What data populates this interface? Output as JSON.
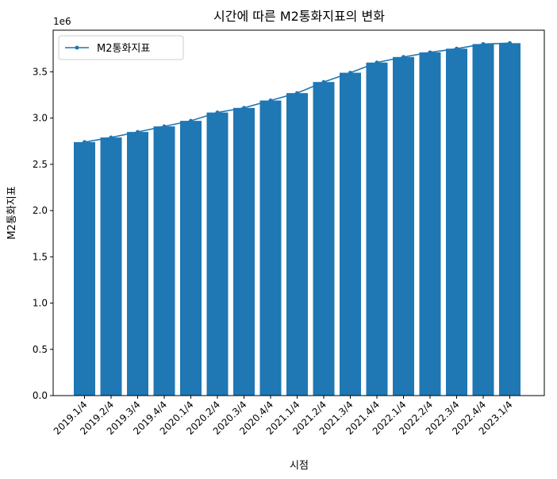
{
  "chart_data": {
    "type": "bar",
    "title": "시간에 따른 M2통화지표의 변화",
    "xlabel": "시점",
    "ylabel": "M2통화지표",
    "y_multiplier_label": "1e6",
    "categories": [
      "2019.1/4",
      "2019.2/4",
      "2019.3/4",
      "2019.4/4",
      "2020.1/4",
      "2020.2/4",
      "2020.3/4",
      "2020.4/4",
      "2021.1/4",
      "2021.2/4",
      "2021.3/4",
      "2021.4/4",
      "2022.1/4",
      "2022.2/4",
      "2022.3/4",
      "2022.4/4",
      "2023.1/4"
    ],
    "series": [
      {
        "name": "M2통화지표",
        "kind": "bar",
        "values": [
          2.74,
          2.79,
          2.85,
          2.91,
          2.97,
          3.06,
          3.11,
          3.19,
          3.27,
          3.39,
          3.49,
          3.6,
          3.66,
          3.71,
          3.75,
          3.8,
          3.81
        ]
      },
      {
        "name": "M2통화지표",
        "kind": "line",
        "values": [
          2.74,
          2.79,
          2.85,
          2.91,
          2.97,
          3.06,
          3.11,
          3.19,
          3.27,
          3.39,
          3.49,
          3.6,
          3.66,
          3.71,
          3.75,
          3.8,
          3.81
        ]
      }
    ],
    "ylim": [
      0,
      3.95
    ],
    "yticks": [
      "0.0",
      "0.5",
      "1.0",
      "1.5",
      "2.0",
      "2.5",
      "3.0",
      "3.5"
    ],
    "legend": {
      "position": "top-left",
      "entries": [
        "M2통화지표"
      ]
    },
    "grid": false,
    "colors": {
      "bar": "#1f77b4",
      "line": "#1f77b4"
    }
  }
}
